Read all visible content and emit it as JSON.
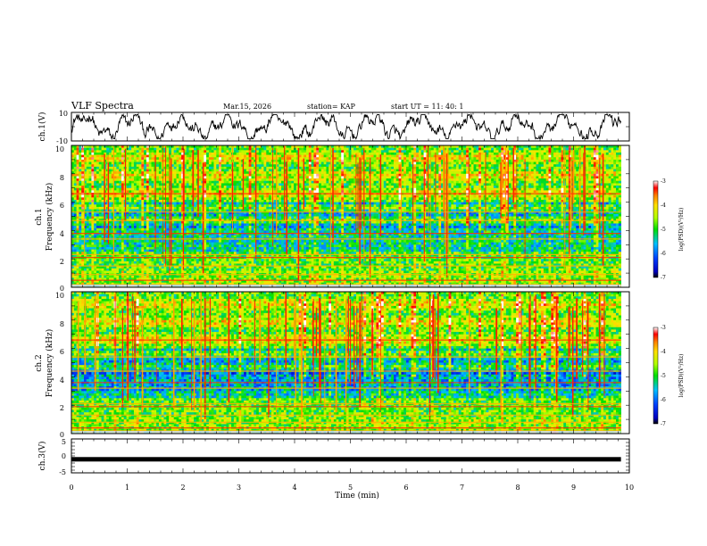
{
  "header": {
    "title": "VLF Spectra",
    "date": "Mar.15, 2026",
    "station": "station= KAP",
    "start_ut": "start  UT =    11: 40: 1"
  },
  "chart_data": [
    {
      "type": "line",
      "name": "ch1-waveform",
      "ylabel": "ch.1(V)",
      "ylim": [
        -10,
        10
      ],
      "ytick_labels": [
        "10",
        "-10"
      ],
      "xlim": [
        0,
        10
      ],
      "data_extent_min": 9.85,
      "description_series": "noisy waveform oscillating between about -8 and 8 V"
    },
    {
      "type": "heatmap",
      "name": "ch1-spectrogram",
      "ylabel_line1": "ch.1",
      "ylabel_line2": "Frequency (kHz)",
      "ylim": [
        0,
        10
      ],
      "ytick_labels": [
        "10",
        "8",
        "6",
        "4",
        "2",
        "0"
      ],
      "xlim": [
        0,
        10
      ],
      "colorbar": {
        "label": "log(PSD)(V²/Hz)",
        "range": [
          -7,
          -3
        ],
        "tick_labels": [
          "-3",
          "-4",
          "-5",
          "-6",
          "-7"
        ]
      }
    },
    {
      "type": "heatmap",
      "name": "ch2-spectrogram",
      "ylabel_line1": "ch.2",
      "ylabel_line2": "Frequency (kHz)",
      "ylim": [
        0,
        10
      ],
      "ytick_labels": [
        "10",
        "8",
        "6",
        "4",
        "2",
        "0"
      ],
      "xlim": [
        0,
        10
      ],
      "colorbar": {
        "label": "log(PSD)(V²/Hz)",
        "range": [
          -7,
          -3
        ],
        "tick_labels": [
          "-3",
          "-4",
          "-5",
          "-6",
          "-7"
        ]
      }
    },
    {
      "type": "line",
      "name": "ch3-waveform",
      "ylabel": "ch.3(V)",
      "ylim": [
        -5,
        5
      ],
      "ytick_labels": [
        "5",
        "0",
        "-5"
      ],
      "xlim": [
        0,
        10
      ],
      "level": -1,
      "xlabel": "Time (min)",
      "xtick_labels": [
        "0",
        "1",
        "2",
        "3",
        "4",
        "5",
        "6",
        "7",
        "8",
        "9",
        "10"
      ]
    }
  ]
}
